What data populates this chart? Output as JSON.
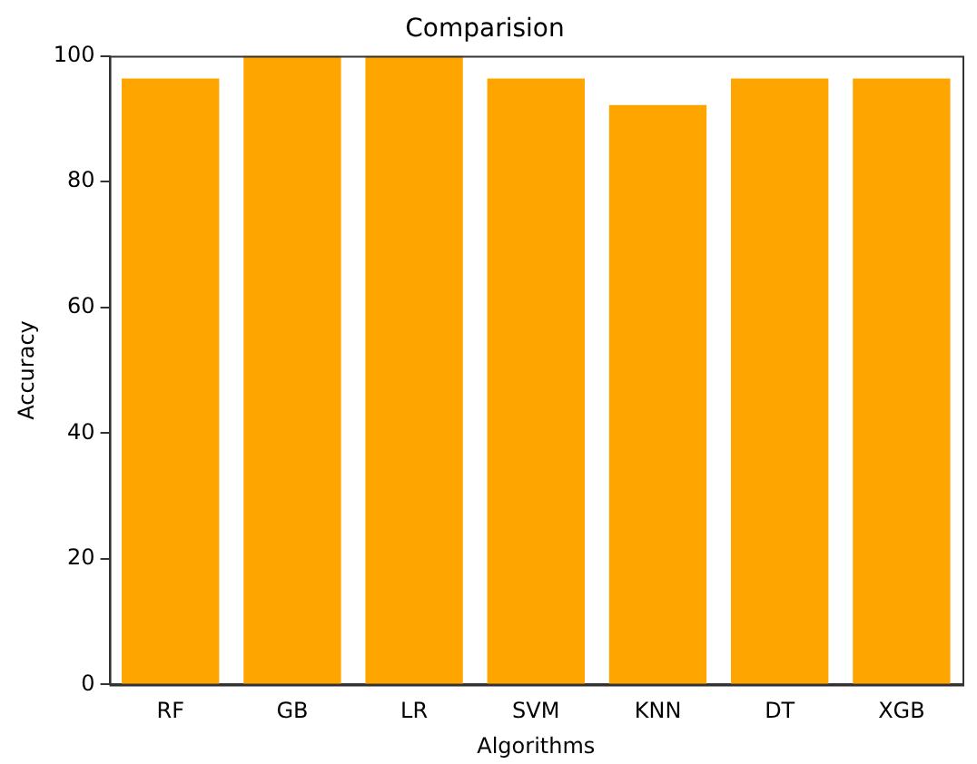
{
  "chart_data": {
    "type": "bar",
    "title": "Comparision",
    "xlabel": "Algorithms",
    "ylabel": "Accuracy",
    "categories": [
      "RF",
      "GB",
      "LR",
      "SVM",
      "KNN",
      "DT",
      "XGB"
    ],
    "values": [
      96.4,
      100,
      100,
      96.4,
      92.2,
      96.4,
      96.4
    ],
    "color": "#ffa500",
    "ylim": [
      0,
      100
    ],
    "yticks": [
      0,
      20,
      40,
      60,
      80,
      100
    ],
    "grid": false,
    "legend": false
  }
}
